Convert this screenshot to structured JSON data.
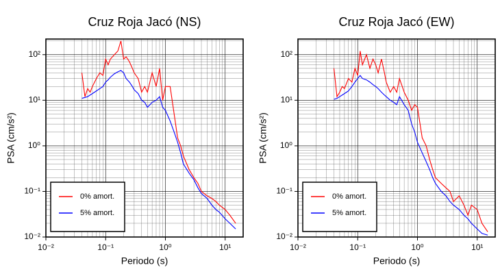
{
  "chart_data": [
    {
      "type": "line",
      "title": "Cruz Roja Jacó (NS)",
      "x_label": "Periodo (s)",
      "y_label": "PSA (cm/s²)",
      "xscale": "log",
      "yscale": "log",
      "grid": true,
      "legend": "lower left",
      "xlim": [
        0.01,
        20
      ],
      "ylim": [
        0.01,
        220
      ],
      "xticks": [
        {
          "value": 0.01,
          "label": "10⁻²"
        },
        {
          "value": 0.1,
          "label": "10⁻¹"
        },
        {
          "value": 1,
          "label": "10⁰"
        },
        {
          "value": 10,
          "label": "10¹"
        }
      ],
      "yticks": [
        {
          "value": 0.01,
          "label": "10⁻²"
        },
        {
          "value": 0.1,
          "label": "10⁻¹"
        },
        {
          "value": 1,
          "label": "10⁰"
        },
        {
          "value": 10,
          "label": "10¹"
        },
        {
          "value": 100,
          "label": "10²"
        }
      ],
      "x": [
        0.04,
        0.045,
        0.05,
        0.055,
        0.06,
        0.07,
        0.08,
        0.09,
        0.1,
        0.11,
        0.12,
        0.14,
        0.16,
        0.18,
        0.2,
        0.22,
        0.25,
        0.28,
        0.3,
        0.35,
        0.4,
        0.45,
        0.5,
        0.6,
        0.7,
        0.8,
        0.9,
        1.0,
        1.2,
        1.4,
        1.6,
        1.8,
        2,
        2.5,
        3,
        3.5,
        4,
        5,
        6,
        7,
        8,
        10,
        12,
        15
      ],
      "series": [
        {
          "name": "0% amort.",
          "color": "#ff0000",
          "values": [
            40,
            12,
            18,
            15,
            20,
            30,
            40,
            35,
            80,
            60,
            80,
            100,
            120,
            200,
            80,
            90,
            70,
            50,
            40,
            30,
            15,
            20,
            15,
            40,
            20,
            50,
            10,
            20,
            20,
            5,
            1.5,
            1.0,
            0.6,
            0.3,
            0.2,
            0.15,
            0.1,
            0.08,
            0.07,
            0.06,
            0.05,
            0.04,
            0.03,
            0.02
          ]
        },
        {
          "name": "5% amort.",
          "color": "#0000ff",
          "values": [
            11,
            11.5,
            12,
            13,
            14,
            16,
            18,
            20,
            25,
            28,
            32,
            38,
            42,
            45,
            40,
            30,
            25,
            20,
            17,
            14,
            10,
            9,
            7,
            9,
            10,
            12,
            7,
            6,
            3.5,
            2,
            1.2,
            0.7,
            0.4,
            0.25,
            0.18,
            0.12,
            0.09,
            0.07,
            0.05,
            0.04,
            0.035,
            0.025,
            0.02,
            0.015
          ]
        }
      ]
    },
    {
      "type": "line",
      "title": "Cruz Roja Jacó (EW)",
      "x_label": "Periodo (s)",
      "y_label": "PSA (cm/s²)",
      "xscale": "log",
      "yscale": "log",
      "grid": true,
      "legend": "lower left",
      "xlim": [
        0.01,
        20
      ],
      "ylim": [
        0.01,
        220
      ],
      "xticks": [
        {
          "value": 0.01,
          "label": "10⁻²"
        },
        {
          "value": 0.1,
          "label": "10⁻¹"
        },
        {
          "value": 1,
          "label": "10⁰"
        },
        {
          "value": 10,
          "label": "10¹"
        }
      ],
      "yticks": [
        {
          "value": 0.01,
          "label": "10⁻²"
        },
        {
          "value": 0.1,
          "label": "10⁻¹"
        },
        {
          "value": 1,
          "label": "10⁰"
        },
        {
          "value": 10,
          "label": "10¹"
        },
        {
          "value": 100,
          "label": "10²"
        }
      ],
      "x": [
        0.04,
        0.045,
        0.05,
        0.055,
        0.06,
        0.07,
        0.08,
        0.09,
        0.1,
        0.11,
        0.12,
        0.14,
        0.16,
        0.18,
        0.2,
        0.22,
        0.25,
        0.28,
        0.3,
        0.35,
        0.4,
        0.45,
        0.5,
        0.6,
        0.7,
        0.8,
        0.9,
        1.0,
        1.2,
        1.4,
        1.6,
        1.8,
        2,
        2.5,
        3,
        3.5,
        4,
        5,
        6,
        7,
        8,
        10,
        12,
        15
      ],
      "series": [
        {
          "name": "0% amort.",
          "color": "#ff0000",
          "values": [
            50,
            12,
            15,
            20,
            18,
            30,
            25,
            50,
            35,
            120,
            60,
            100,
            50,
            80,
            60,
            40,
            80,
            40,
            25,
            15,
            20,
            15,
            30,
            15,
            10,
            6,
            8,
            7,
            1.5,
            1.0,
            0.5,
            0.3,
            0.2,
            0.15,
            0.12,
            0.1,
            0.06,
            0.08,
            0.05,
            0.03,
            0.05,
            0.04,
            0.02,
            0.013
          ]
        },
        {
          "name": "5% amort.",
          "color": "#0000ff",
          "values": [
            10.5,
            11,
            12,
            13,
            14,
            16,
            20,
            25,
            30,
            35,
            30,
            28,
            25,
            22,
            20,
            18,
            15,
            13,
            12,
            10,
            9,
            8,
            12,
            8,
            6,
            3,
            2,
            1.2,
            0.7,
            0.45,
            0.3,
            0.2,
            0.15,
            0.1,
            0.08,
            0.06,
            0.05,
            0.04,
            0.03,
            0.025,
            0.02,
            0.015,
            0.012,
            0.011
          ]
        }
      ]
    }
  ]
}
